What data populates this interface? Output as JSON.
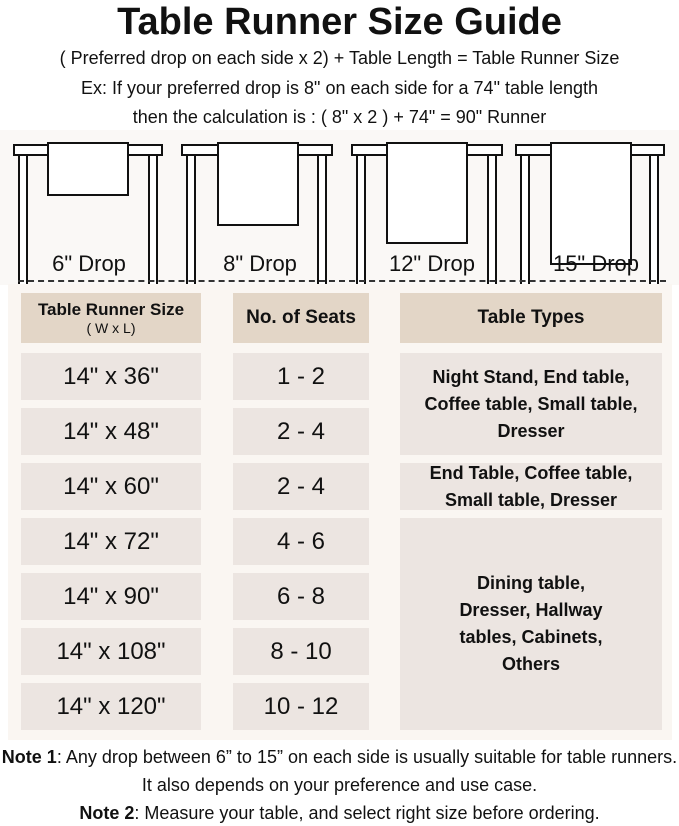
{
  "title": "Table Runner Size Guide",
  "formula": "( Preferred drop on each side x 2) + Table Length = Table Runner Size",
  "example_line1": "Ex: If your preferred drop is 8\" on each side for a 74\" table length",
  "example_line2": "then the calculation is : ( 8\" x 2 ) + 74\" = 90\" Runner",
  "drops": [
    "6\" Drop",
    "8\" Drop",
    "12\" Drop",
    "15\" Drop"
  ],
  "table": {
    "headers": {
      "size": "Table Runner Size",
      "size_sub": "( W x L)",
      "seats": "No. of Seats",
      "types": "Table Types"
    },
    "rows": [
      {
        "size": "14\" x 36\"",
        "seats": "1 - 2"
      },
      {
        "size": "14\" x 48\"",
        "seats": "2 - 4"
      },
      {
        "size": "14\" x 60\"",
        "seats": "2 - 4"
      },
      {
        "size": "14\" x 72\"",
        "seats": "4 - 6"
      },
      {
        "size": "14\" x 90\"",
        "seats": "6 - 8"
      },
      {
        "size": "14\" x 108\"",
        "seats": "8 - 10"
      },
      {
        "size": "14\" x 120\"",
        "seats": "10 - 12"
      }
    ],
    "types": [
      "Night Stand, End table, Coffee table, Small table, Dresser",
      "End Table, Coffee table, Small table, Dresser",
      "Dining table, Dresser, Hallway tables, Cabinets, Others"
    ]
  },
  "notes": [
    {
      "label": "Note 1",
      "text": ": Any drop between 6” to 15” on each side is usually suitable for table runners. It also depends on your preference and use case."
    },
    {
      "label": "Note 2",
      "text": ": Measure your table, and select right size before ordering."
    }
  ],
  "colors": {
    "header_cell": "#e3d6c7",
    "data_cell": "#ece5e1",
    "panel": "#faf6f2"
  }
}
